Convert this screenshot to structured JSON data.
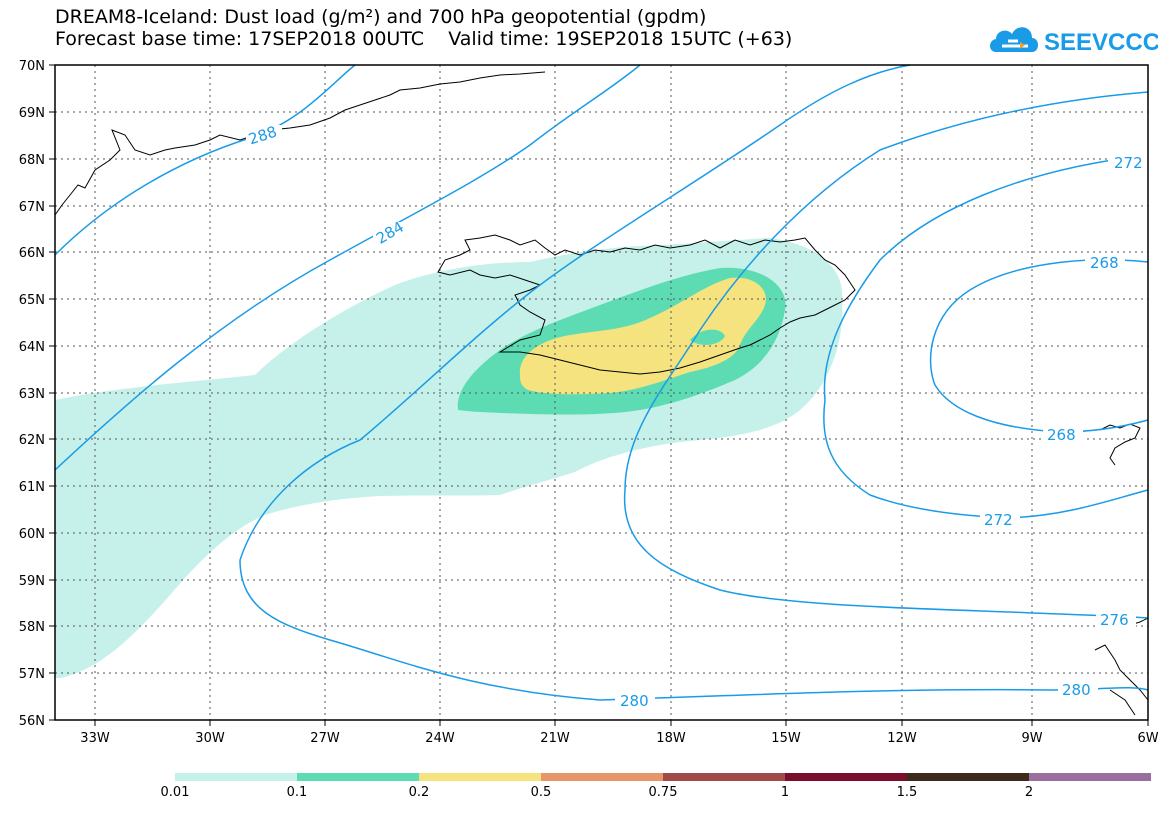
{
  "header": {
    "title_line1": "DREAM8-Iceland: Dust load (g/m²) and 700 hPa geopotential (gpdm)",
    "title_line2": "Forecast base time: 17SEP2018 00UTC    Valid time: 19SEP2018 15UTC (+63)"
  },
  "logo": {
    "text": "SEEVCCC",
    "icon": "cloud-icon",
    "color": "#1a9be8"
  },
  "axes": {
    "lat_labels": [
      "70N",
      "69N",
      "68N",
      "67N",
      "66N",
      "65N",
      "64N",
      "63N",
      "62N",
      "61N",
      "60N",
      "59N",
      "58N",
      "57N",
      "56N"
    ],
    "lon_labels": [
      "33W",
      "30W",
      "27W",
      "24W",
      "21W",
      "18W",
      "15W",
      "12W",
      "9W",
      "6W"
    ]
  },
  "contours": {
    "color": "#1a9be8",
    "labels": [
      "288",
      "284",
      "272",
      "268",
      "268",
      "272",
      "276",
      "280",
      "280"
    ]
  },
  "colorbar": {
    "colors": [
      "#c6f1ea",
      "#5ddcb4",
      "#f4e37e",
      "#e59769",
      "#a14b48",
      "#7a0f2b",
      "#3d2a1d",
      "#9a6fa0"
    ],
    "labels": [
      "0.01",
      "0.1",
      "0.2",
      "0.5",
      "0.75",
      "1",
      "1.5",
      "2"
    ]
  }
}
